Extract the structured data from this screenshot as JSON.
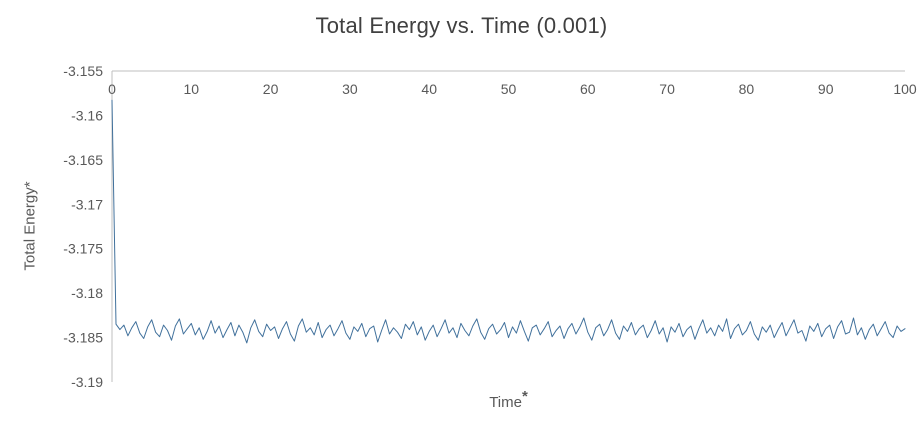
{
  "axis_titles": {
    "x_text": "Time",
    "x_asterisk": "*",
    "y_text": "Total Energy*"
  },
  "chart_data": {
    "type": "line",
    "title": "Total Energy vs. Time (0.001)",
    "xlabel": "Time *",
    "ylabel": "Total Energy*",
    "xlim": [
      0,
      100
    ],
    "ylim": [
      -3.19,
      -3.155
    ],
    "x_ticks": [
      0,
      10,
      20,
      30,
      40,
      50,
      60,
      70,
      80,
      90,
      100
    ],
    "y_ticks": [
      -3.155,
      -3.16,
      -3.165,
      -3.17,
      -3.175,
      -3.18,
      -3.185,
      -3.19
    ],
    "y_tick_labels": [
      "-3.155",
      "-3.16",
      "-3.165",
      "-3.17",
      "-3.175",
      "-3.18",
      "-3.185",
      "-3.19"
    ],
    "grid": false,
    "legend": "none",
    "colors": {
      "line": "#41719C",
      "axis": "#BFBFBF",
      "tick_text": "#595959",
      "title_text": "#404040"
    },
    "series": [
      {
        "name": "Total Energy",
        "x0": 0,
        "dx": 0.5,
        "values": [
          -3.1583,
          -3.1835,
          -3.1841,
          -3.1836,
          -3.1848,
          -3.1839,
          -3.1832,
          -3.1845,
          -3.1851,
          -3.1838,
          -3.183,
          -3.1844,
          -3.1849,
          -3.1836,
          -3.1842,
          -3.1853,
          -3.1837,
          -3.1829,
          -3.1846,
          -3.184,
          -3.1834,
          -3.1847,
          -3.1839,
          -3.1852,
          -3.1843,
          -3.1831,
          -3.1845,
          -3.1837,
          -3.185,
          -3.1841,
          -3.1833,
          -3.1848,
          -3.1836,
          -3.1844,
          -3.1856,
          -3.1839,
          -3.183,
          -3.1843,
          -3.1849,
          -3.1835,
          -3.1842,
          -3.1838,
          -3.1851,
          -3.184,
          -3.1832,
          -3.1846,
          -3.1854,
          -3.1837,
          -3.1829,
          -3.1844,
          -3.1839,
          -3.1847,
          -3.1833,
          -3.185,
          -3.1841,
          -3.1836,
          -3.1848,
          -3.184,
          -3.1831,
          -3.1845,
          -3.1852,
          -3.1838,
          -3.1843,
          -3.1834,
          -3.1849,
          -3.184,
          -3.1837,
          -3.1855,
          -3.1842,
          -3.183,
          -3.1846,
          -3.1839,
          -3.1844,
          -3.1851,
          -3.1835,
          -3.1841,
          -3.1832,
          -3.1847,
          -3.1838,
          -3.1853,
          -3.1843,
          -3.1836,
          -3.1849,
          -3.184,
          -3.183,
          -3.1845,
          -3.1839,
          -3.185,
          -3.1834,
          -3.1842,
          -3.1848,
          -3.1837,
          -3.1829,
          -3.1844,
          -3.1852,
          -3.184,
          -3.1835,
          -3.1846,
          -3.1841,
          -3.1833,
          -3.185,
          -3.1838,
          -3.1845,
          -3.1831,
          -3.1843,
          -3.1854,
          -3.1839,
          -3.1836,
          -3.1847,
          -3.184,
          -3.1832,
          -3.1849,
          -3.1842,
          -3.1837,
          -3.1851,
          -3.184,
          -3.1834,
          -3.1846,
          -3.1838,
          -3.1828,
          -3.1844,
          -3.1853,
          -3.1839,
          -3.1835,
          -3.1848,
          -3.1841,
          -3.183,
          -3.1845,
          -3.1852,
          -3.1837,
          -3.1843,
          -3.1833,
          -3.1847,
          -3.184,
          -3.1836,
          -3.185,
          -3.1842,
          -3.1831,
          -3.1846,
          -3.1839,
          -3.1855,
          -3.1838,
          -3.1844,
          -3.1834,
          -3.1849,
          -3.1841,
          -3.1837,
          -3.1852,
          -3.184,
          -3.183,
          -3.1845,
          -3.1839,
          -3.1848,
          -3.1836,
          -3.1843,
          -3.1829,
          -3.1851,
          -3.184,
          -3.1835,
          -3.1847,
          -3.1842,
          -3.1832,
          -3.1846,
          -3.1853,
          -3.1838,
          -3.1844,
          -3.1836,
          -3.185,
          -3.1841,
          -3.1833,
          -3.1848,
          -3.1839,
          -3.183,
          -3.1845,
          -3.1842,
          -3.1854,
          -3.1837,
          -3.1843,
          -3.1834,
          -3.1849,
          -3.184,
          -3.1836,
          -3.1851,
          -3.1838,
          -3.1831,
          -3.1846,
          -3.1844,
          -3.1828,
          -3.1847,
          -3.1839,
          -3.1852,
          -3.1841,
          -3.1835,
          -3.1848,
          -3.184,
          -3.1832,
          -3.1845,
          -3.185,
          -3.1837,
          -3.1843,
          -3.184
        ]
      }
    ]
  }
}
